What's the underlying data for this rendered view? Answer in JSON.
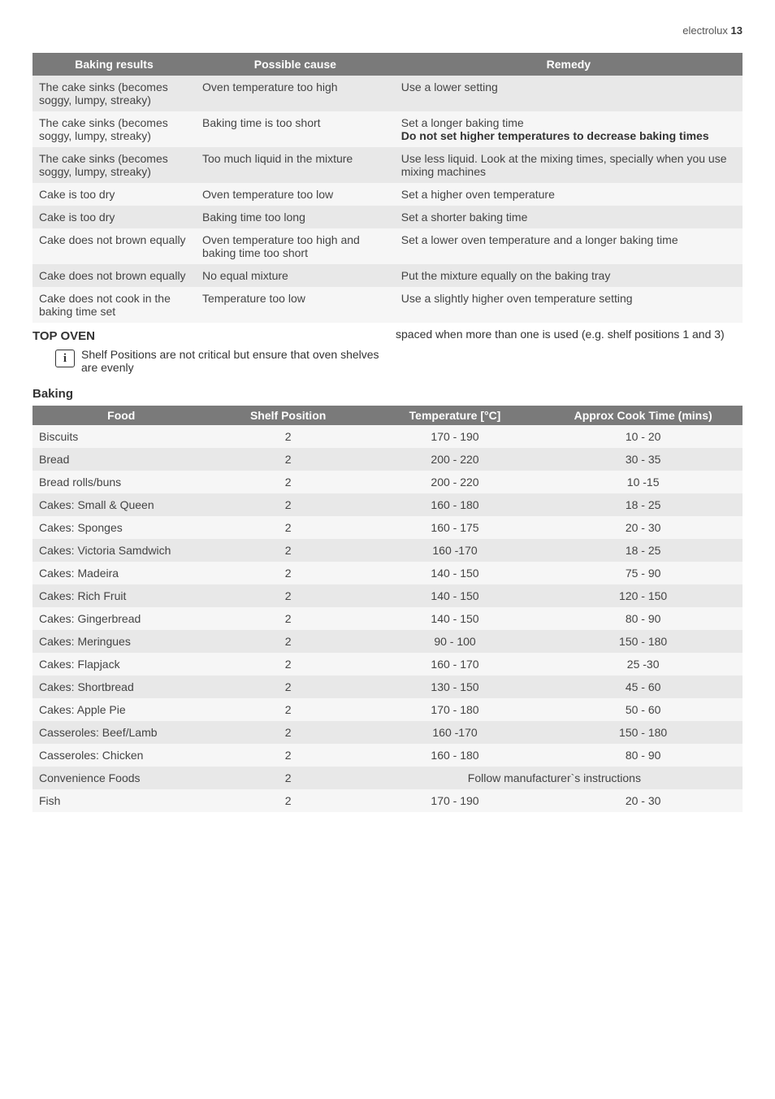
{
  "header": {
    "brand": "electrolux",
    "page_number": "13"
  },
  "troubleshoot": {
    "headers": [
      "Baking results",
      "Possible cause",
      "Remedy"
    ],
    "rows": [
      {
        "result": "The cake sinks (becomes soggy, lumpy, streaky)",
        "cause": "Oven temperature too high",
        "remedy_plain": "Use a lower setting",
        "remedy_bold": ""
      },
      {
        "result": "The cake sinks (becomes soggy, lumpy, streaky)",
        "cause": "Baking time is too short",
        "remedy_plain": "Set a longer baking time",
        "remedy_bold": "Do not set higher temperatures to decrease baking times"
      },
      {
        "result": "The cake sinks (becomes soggy, lumpy, streaky)",
        "cause": "Too much liquid in the mixture",
        "remedy_plain": "Use less liquid. Look at the mixing times, specially when you use mixing machines",
        "remedy_bold": ""
      },
      {
        "result": "Cake is too dry",
        "cause": "Oven temperature too low",
        "remedy_plain": "Set a higher oven temperature",
        "remedy_bold": ""
      },
      {
        "result": "Cake is too dry",
        "cause": "Baking time too long",
        "remedy_plain": "Set a shorter baking time",
        "remedy_bold": ""
      },
      {
        "result": "Cake does not brown equally",
        "cause": "Oven temperature too high and baking time too short",
        "remedy_plain": "Set a lower oven temperature and a longer baking time",
        "remedy_bold": ""
      },
      {
        "result": "Cake does not brown equally",
        "cause": "No equal mixture",
        "remedy_plain": "Put the mixture equally on the baking tray",
        "remedy_bold": ""
      },
      {
        "result": "Cake does not cook in the baking time set",
        "cause": "Temperature too low",
        "remedy_plain": "Use a slightly higher oven temperature setting",
        "remedy_bold": ""
      }
    ]
  },
  "top_oven": {
    "title": "TOP OVEN",
    "info_left": "Shelf Positions are not critical but ensure that oven shelves are evenly",
    "info_right": "spaced when more than one is used (e.g. shelf positions 1 and 3)"
  },
  "baking": {
    "title": "Baking",
    "headers": [
      "Food",
      "Shelf Position",
      "Temperature [°C]",
      "Approx Cook Time (mins)"
    ],
    "rows": [
      {
        "food": "Biscuits",
        "shelf": "2",
        "temp": "170 - 190",
        "time": "10 - 20"
      },
      {
        "food": "Bread",
        "shelf": "2",
        "temp": "200 - 220",
        "time": "30 - 35"
      },
      {
        "food": "Bread rolls/buns",
        "shelf": "2",
        "temp": "200 - 220",
        "time": "10 -15"
      },
      {
        "food": "Cakes: Small & Queen",
        "shelf": "2",
        "temp": "160 - 180",
        "time": "18 - 25"
      },
      {
        "food": "Cakes: Sponges",
        "shelf": "2",
        "temp": "160 - 175",
        "time": "20 - 30"
      },
      {
        "food": "Cakes: Victoria Samdwich",
        "shelf": "2",
        "temp": "160 -170",
        "time": "18 - 25"
      },
      {
        "food": "Cakes: Madeira",
        "shelf": "2",
        "temp": "140 - 150",
        "time": "75 - 90"
      },
      {
        "food": "Cakes: Rich Fruit",
        "shelf": "2",
        "temp": "140 - 150",
        "time": "120 - 150"
      },
      {
        "food": "Cakes: Gingerbread",
        "shelf": "2",
        "temp": "140 - 150",
        "time": "80 - 90"
      },
      {
        "food": "Cakes: Meringues",
        "shelf": "2",
        "temp": "90 - 100",
        "time": "150 - 180"
      },
      {
        "food": "Cakes: Flapjack",
        "shelf": "2",
        "temp": "160 - 170",
        "time": "25 -30"
      },
      {
        "food": "Cakes: Shortbread",
        "shelf": "2",
        "temp": "130 - 150",
        "time": "45 - 60"
      },
      {
        "food": "Cakes: Apple Pie",
        "shelf": "2",
        "temp": "170 - 180",
        "time": "50 - 60"
      },
      {
        "food": "Casseroles: Beef/Lamb",
        "shelf": "2",
        "temp": "160 -170",
        "time": "150 - 180"
      },
      {
        "food": "Casseroles: Chicken",
        "shelf": "2",
        "temp": "160 - 180",
        "time": "80 - 90"
      },
      {
        "food": "Convenience Foods",
        "shelf": "2",
        "temp_span": "Follow manufacturer`s instructions"
      },
      {
        "food": "Fish",
        "shelf": "2",
        "temp": "170 - 190",
        "time": "20 - 30"
      }
    ]
  }
}
